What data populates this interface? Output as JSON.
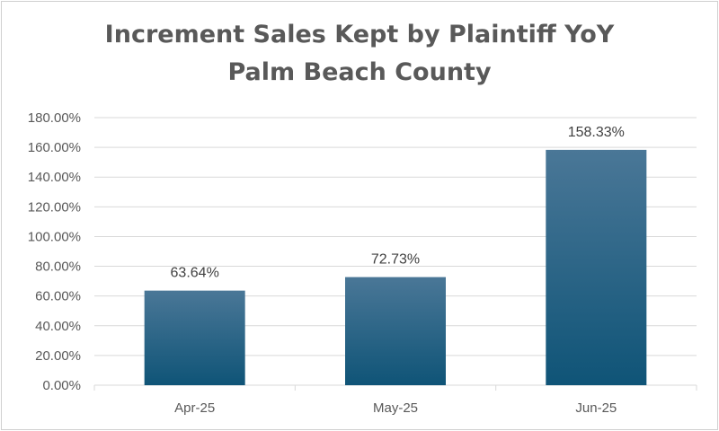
{
  "chart_data": {
    "type": "bar",
    "title": "Increment Sales Kept by Plaintiff YoY",
    "subtitle": "Palm Beach County",
    "xlabel": "",
    "ylabel": "",
    "categories": [
      "Apr-25",
      "May-25",
      "Jun-25"
    ],
    "values": [
      63.64,
      72.73,
      158.33
    ],
    "data_labels": [
      "63.64%",
      "72.73%",
      "158.33%"
    ],
    "ylim": [
      0,
      180
    ],
    "y_ticks": [
      0,
      20,
      40,
      60,
      80,
      100,
      120,
      140,
      160,
      180
    ],
    "y_tick_labels": [
      "0.00%",
      "20.00%",
      "40.00%",
      "60.00%",
      "80.00%",
      "100.00%",
      "120.00%",
      "140.00%",
      "160.00%",
      "180.00%"
    ],
    "grid": true,
    "legend": "none",
    "colors": {
      "bar_top": "#4a7797",
      "bar_bottom": "#0f5477",
      "grid": "#d9d9d9",
      "text": "#595959"
    }
  }
}
